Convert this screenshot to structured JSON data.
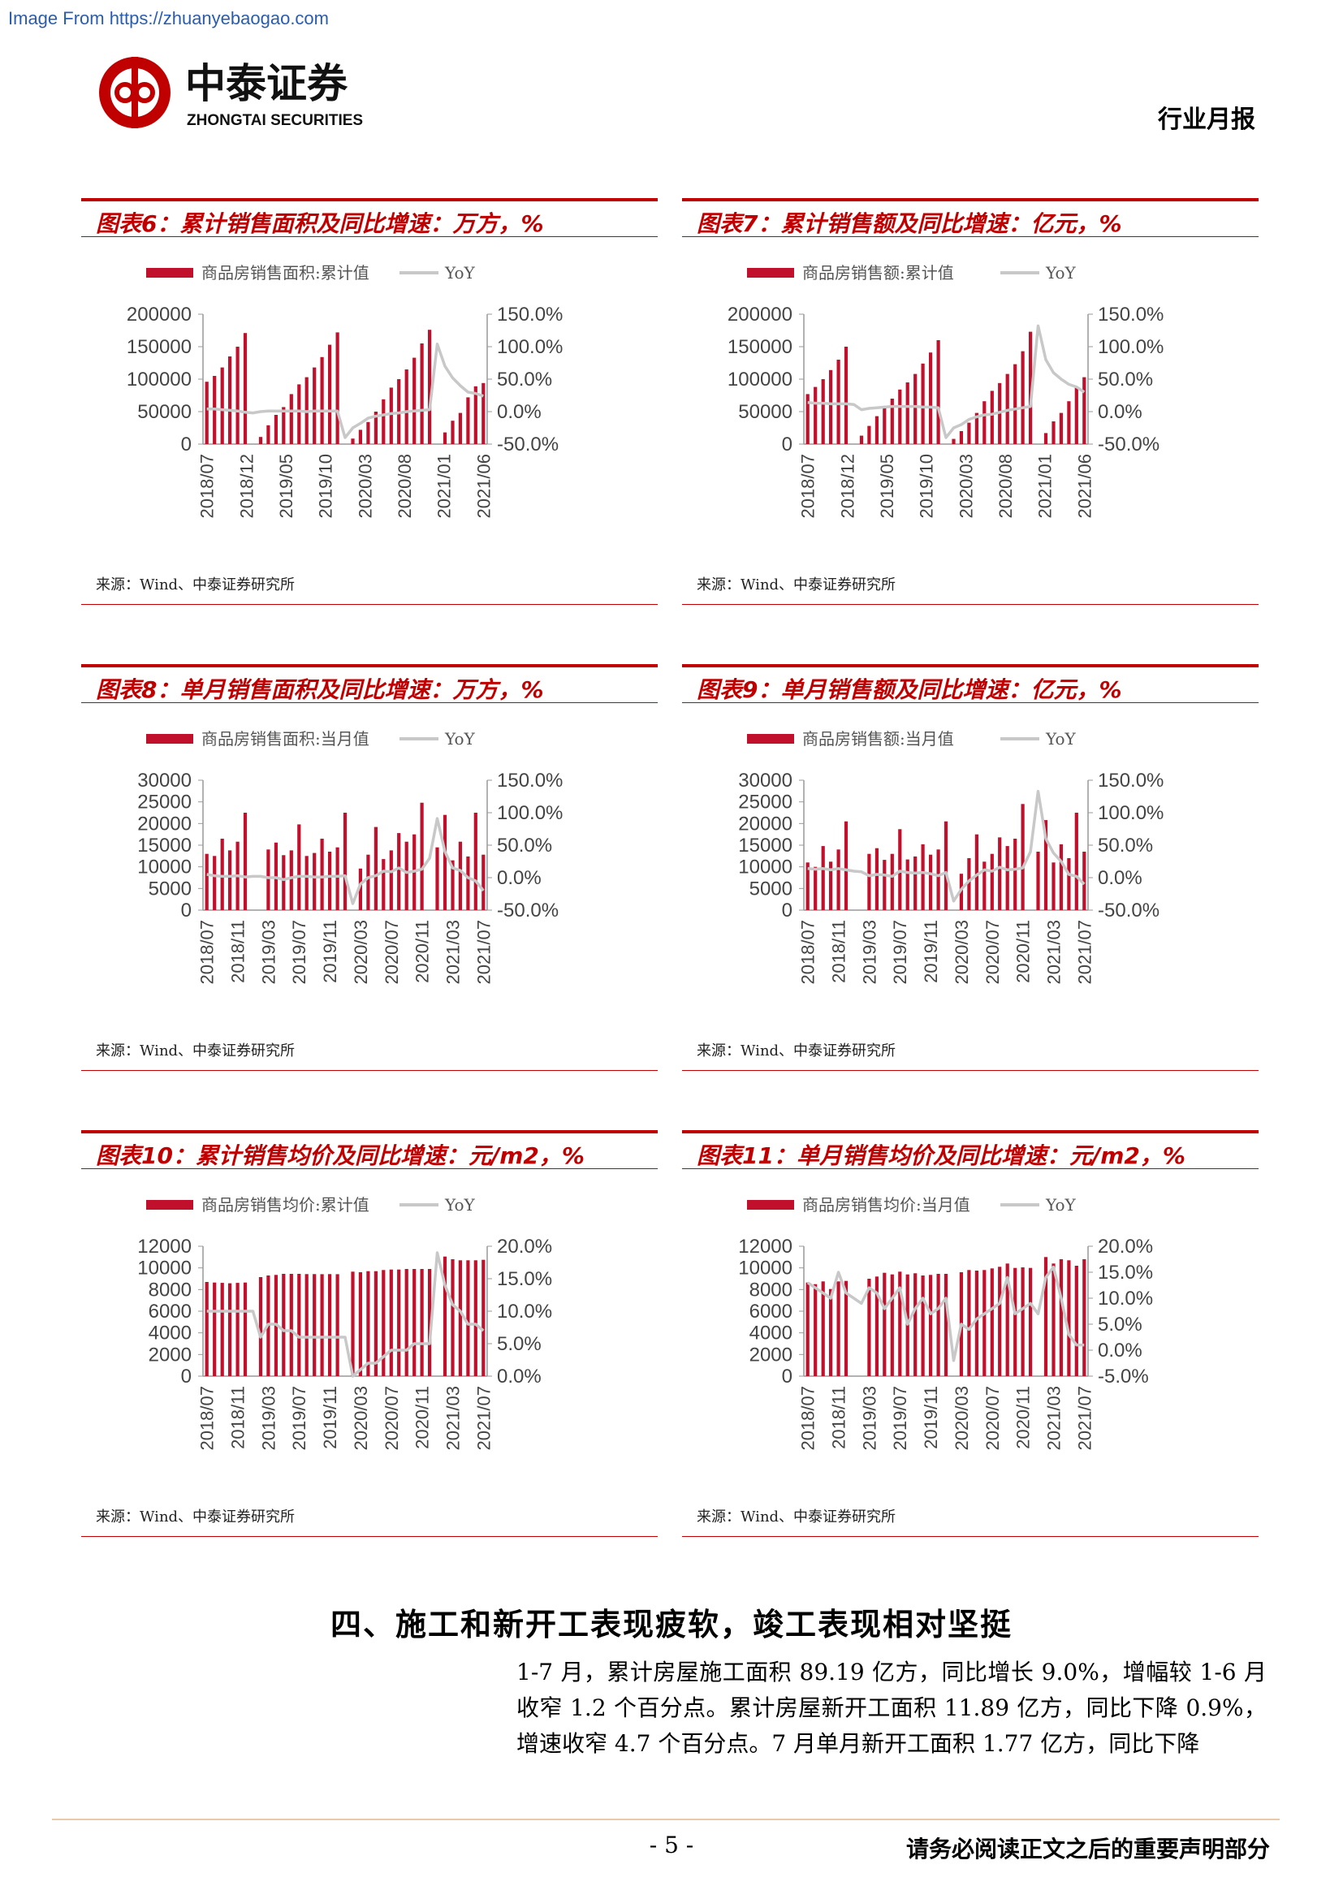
{
  "header": {
    "watermark": "Image From https://zhuanyebaogao.com",
    "logo_cn": "中泰证券",
    "logo_en": "ZHONGTAI SECURITIES",
    "report_type": "行业月报"
  },
  "colors": {
    "bar": "#c0102c",
    "line": "#c8c8c8",
    "title": "#c00000"
  },
  "charts": [
    {
      "id": "fig6",
      "title": "图表6：累计销售面积及同比增速：万方，%",
      "source": "来源：Wind、中泰证券研究所",
      "legend_bar": "商品房销售面积:累计值",
      "legend_line": "YoY",
      "left_ticks": [
        "200000",
        "150000",
        "100000",
        "50000",
        "0"
      ],
      "right_ticks": [
        "150.0%",
        "100.0%",
        "50.0%",
        "0.0%",
        "-50.0%"
      ],
      "x_labels": [
        "2018/07",
        "2018/12",
        "2019/05",
        "2019/10",
        "2020/03",
        "2020/08",
        "2021/01",
        "2021/06"
      ]
    },
    {
      "id": "fig7",
      "title": "图表7：累计销售额及同比增速：亿元，%",
      "source": "来源：Wind、中泰证券研究所",
      "legend_bar": "商品房销售额:累计值",
      "legend_line": "YoY",
      "left_ticks": [
        "200000",
        "150000",
        "100000",
        "50000",
        "0"
      ],
      "right_ticks": [
        "150.0%",
        "100.0%",
        "50.0%",
        "0.0%",
        "-50.0%"
      ],
      "x_labels": [
        "2018/07",
        "2018/12",
        "2019/05",
        "2019/10",
        "2020/03",
        "2020/08",
        "2021/01",
        "2021/06"
      ]
    },
    {
      "id": "fig8",
      "title": "图表8：单月销售面积及同比增速：万方，%",
      "source": "来源：Wind、中泰证券研究所",
      "legend_bar": "商品房销售面积:当月值",
      "legend_line": "YoY",
      "left_ticks": [
        "30000",
        "25000",
        "20000",
        "15000",
        "10000",
        "5000",
        "0"
      ],
      "right_ticks": [
        "150.0%",
        "100.0%",
        "50.0%",
        "0.0%",
        "-50.0%"
      ],
      "x_labels": [
        "2018/07",
        "2018/11",
        "2019/03",
        "2019/07",
        "2019/11",
        "2020/03",
        "2020/07",
        "2020/11",
        "2021/03",
        "2021/07"
      ]
    },
    {
      "id": "fig9",
      "title": "图表9：单月销售额及同比增速：亿元，%",
      "source": "来源：Wind、中泰证券研究所",
      "legend_bar": "商品房销售额:当月值",
      "legend_line": "YoY",
      "left_ticks": [
        "30000",
        "25000",
        "20000",
        "15000",
        "10000",
        "5000",
        "0"
      ],
      "right_ticks": [
        "150.0%",
        "100.0%",
        "50.0%",
        "0.0%",
        "-50.0%"
      ],
      "x_labels": [
        "2018/07",
        "2018/11",
        "2019/03",
        "2019/07",
        "2019/11",
        "2020/03",
        "2020/07",
        "2020/11",
        "2021/03",
        "2021/07"
      ]
    },
    {
      "id": "fig10",
      "title": "图表10：累计销售均价及同比增速：元/m2，%",
      "source": "来源：Wind、中泰证券研究所",
      "legend_bar": "商品房销售均价:累计值",
      "legend_line": "YoY",
      "left_ticks": [
        "12000",
        "10000",
        "8000",
        "6000",
        "4000",
        "2000",
        "0"
      ],
      "right_ticks": [
        "20.0%",
        "15.0%",
        "10.0%",
        "5.0%",
        "0.0%"
      ],
      "x_labels": [
        "2018/07",
        "2018/11",
        "2019/03",
        "2019/07",
        "2019/11",
        "2020/03",
        "2020/07",
        "2020/11",
        "2021/03",
        "2021/07"
      ]
    },
    {
      "id": "fig11",
      "title": "图表11：单月销售均价及同比增速：元/m2，%",
      "source": "来源：Wind、中泰证券研究所",
      "legend_bar": "商品房销售均价:当月值",
      "legend_line": "YoY",
      "left_ticks": [
        "12000",
        "10000",
        "8000",
        "6000",
        "4000",
        "2000",
        "0"
      ],
      "right_ticks": [
        "20.0%",
        "15.0%",
        "10.0%",
        "5.0%",
        "0.0%",
        "-5.0%"
      ],
      "x_labels": [
        "2018/07",
        "2018/11",
        "2019/03",
        "2019/07",
        "2019/11",
        "2020/03",
        "2020/07",
        "2020/11",
        "2021/03",
        "2021/07"
      ]
    }
  ],
  "chart_data": [
    {
      "type": "bar",
      "months": 37,
      "bar_values": [
        96000,
        105000,
        118000,
        135000,
        150000,
        171000,
        0,
        11000,
        29000,
        45000,
        57000,
        77000,
        92000,
        103000,
        118000,
        134000,
        153000,
        172000,
        0,
        8500,
        22000,
        34000,
        50000,
        69000,
        87000,
        100000,
        115000,
        133000,
        155000,
        176000,
        0,
        18000,
        36000,
        48000,
        72000,
        89000,
        94000
      ],
      "yoy": [
        4,
        4,
        3,
        2,
        1,
        -1,
        -2,
        0,
        1,
        1,
        1,
        1,
        1,
        0,
        1,
        1,
        1,
        1,
        -40,
        -25,
        -18,
        -10,
        -7,
        -5,
        -3,
        -2,
        0,
        1,
        2,
        3,
        104,
        70,
        52,
        40,
        30,
        28,
        24
      ],
      "ylim": [
        0,
        200000
      ],
      "y2lim": [
        -50,
        150
      ]
    },
    {
      "type": "bar",
      "months": 37,
      "bar_values": [
        77000,
        88000,
        100000,
        114000,
        130000,
        150000,
        0,
        13000,
        28000,
        43000,
        58000,
        70000,
        84000,
        95000,
        108000,
        124000,
        141000,
        160000,
        0,
        8000,
        20000,
        33000,
        48000,
        66000,
        82000,
        94000,
        108000,
        123000,
        143000,
        173000,
        0,
        17000,
        35000,
        48000,
        66000,
        88000,
        103000
      ],
      "yoy": [
        14,
        13,
        13,
        12,
        12,
        12,
        11,
        3,
        5,
        6,
        7,
        8,
        8,
        8,
        8,
        7,
        7,
        6,
        -40,
        -25,
        -20,
        -12,
        -8,
        -5,
        -4,
        -1,
        2,
        4,
        6,
        8,
        132,
        80,
        60,
        50,
        42,
        38,
        30
      ],
      "ylim": [
        0,
        200000
      ],
      "y2lim": [
        -50,
        150
      ]
    },
    {
      "type": "bar",
      "months": 37,
      "bar_values": [
        13000,
        12500,
        16500,
        13800,
        15800,
        22500,
        0,
        0,
        14000,
        15600,
        12700,
        13800,
        19800,
        12500,
        13200,
        16500,
        13500,
        14500,
        22500,
        0,
        9600,
        12800,
        19200,
        11800,
        13800,
        17800,
        15800,
        17500,
        24800,
        0,
        14500,
        22000,
        11500,
        15800,
        12400,
        22500,
        12800
      ],
      "yoy": [
        5,
        3,
        2,
        2,
        3,
        1,
        2,
        2,
        0,
        0,
        -3,
        0,
        2,
        2,
        1,
        1,
        2,
        2,
        3,
        -40,
        -10,
        0,
        3,
        10,
        9,
        15,
        8,
        10,
        13,
        30,
        91,
        40,
        15,
        11,
        0,
        -5,
        -20
      ],
      "ylim": [
        0,
        30000
      ],
      "y2lim": [
        -50,
        150
      ]
    },
    {
      "type": "bar",
      "months": 37,
      "bar_values": [
        11000,
        10000,
        14800,
        11200,
        14000,
        20500,
        0,
        0,
        13000,
        14300,
        11600,
        13000,
        18700,
        11700,
        12400,
        15200,
        12800,
        14000,
        20500,
        0,
        8400,
        12000,
        17500,
        11200,
        13000,
        16800,
        14800,
        16500,
        24500,
        0,
        13500,
        20800,
        11000,
        15200,
        12000,
        22500,
        13500
      ],
      "yoy": [
        14,
        13,
        14,
        12,
        14,
        12,
        10,
        9,
        3,
        5,
        4,
        2,
        10,
        8,
        7,
        8,
        6,
        3,
        8,
        -36,
        -18,
        -5,
        4,
        12,
        10,
        16,
        12,
        13,
        15,
        40,
        133,
        60,
        38,
        25,
        5,
        2,
        -10
      ],
      "ylim": [
        0,
        30000
      ],
      "y2lim": [
        -50,
        150
      ]
    },
    {
      "type": "bar",
      "months": 37,
      "bar_values": [
        8700,
        8650,
        8620,
        8580,
        8620,
        8650,
        0,
        9150,
        9300,
        9350,
        9450,
        9450,
        9450,
        9430,
        9430,
        9420,
        9430,
        9420,
        0,
        9650,
        9600,
        9700,
        9700,
        9800,
        9850,
        9850,
        9900,
        9900,
        9900,
        9900,
        0,
        11050,
        10800,
        10700,
        10700,
        10700,
        10750
      ],
      "yoy": [
        10,
        10,
        10,
        10,
        10,
        10,
        10,
        6,
        8,
        8,
        7,
        7,
        6,
        6,
        6,
        6,
        6,
        6,
        6,
        0,
        1,
        2,
        2,
        3,
        4,
        4,
        4,
        5,
        5,
        5,
        19,
        14,
        11,
        10,
        8,
        8,
        7
      ],
      "ylim": [
        0,
        12000
      ],
      "y2lim": [
        0,
        20
      ]
    },
    {
      "type": "bar",
      "months": 37,
      "bar_values": [
        8650,
        8500,
        8750,
        8050,
        8750,
        8800,
        0,
        0,
        9000,
        9200,
        9550,
        9400,
        9650,
        9400,
        9500,
        9300,
        9350,
        9450,
        9450,
        0,
        9600,
        9800,
        9750,
        9800,
        9950,
        10100,
        10400,
        10000,
        10050,
        10000,
        0,
        11000,
        10400,
        10800,
        10700,
        10200,
        10800
      ],
      "yoy": [
        13,
        12,
        11,
        10,
        15,
        11,
        10,
        9,
        12,
        11,
        8,
        10,
        12,
        5,
        8,
        10,
        7,
        8,
        10,
        -2,
        5,
        4,
        6,
        7,
        8,
        9,
        14,
        7,
        8,
        9,
        7,
        14,
        16,
        10,
        3,
        1,
        1
      ],
      "ylim": [
        0,
        12000
      ],
      "y2lim": [
        -5,
        20
      ]
    }
  ],
  "section": {
    "title": "四、施工和新开工表现疲软，竣工表现相对坚挺",
    "body": "1-7 月，累计房屋施工面积 89.19 亿方，同比增长 9.0%，增幅较 1-6 月收窄 1.2 个百分点。累计房屋新开工面积 11.89 亿方，同比下降 0.9%，增速收窄 4.7 个百分点。7 月单月新开工面积 1.77 亿方，同比下降"
  },
  "footer": {
    "page_number": "- 5 -",
    "disclaimer": "请务必阅读正文之后的重要声明部分"
  }
}
